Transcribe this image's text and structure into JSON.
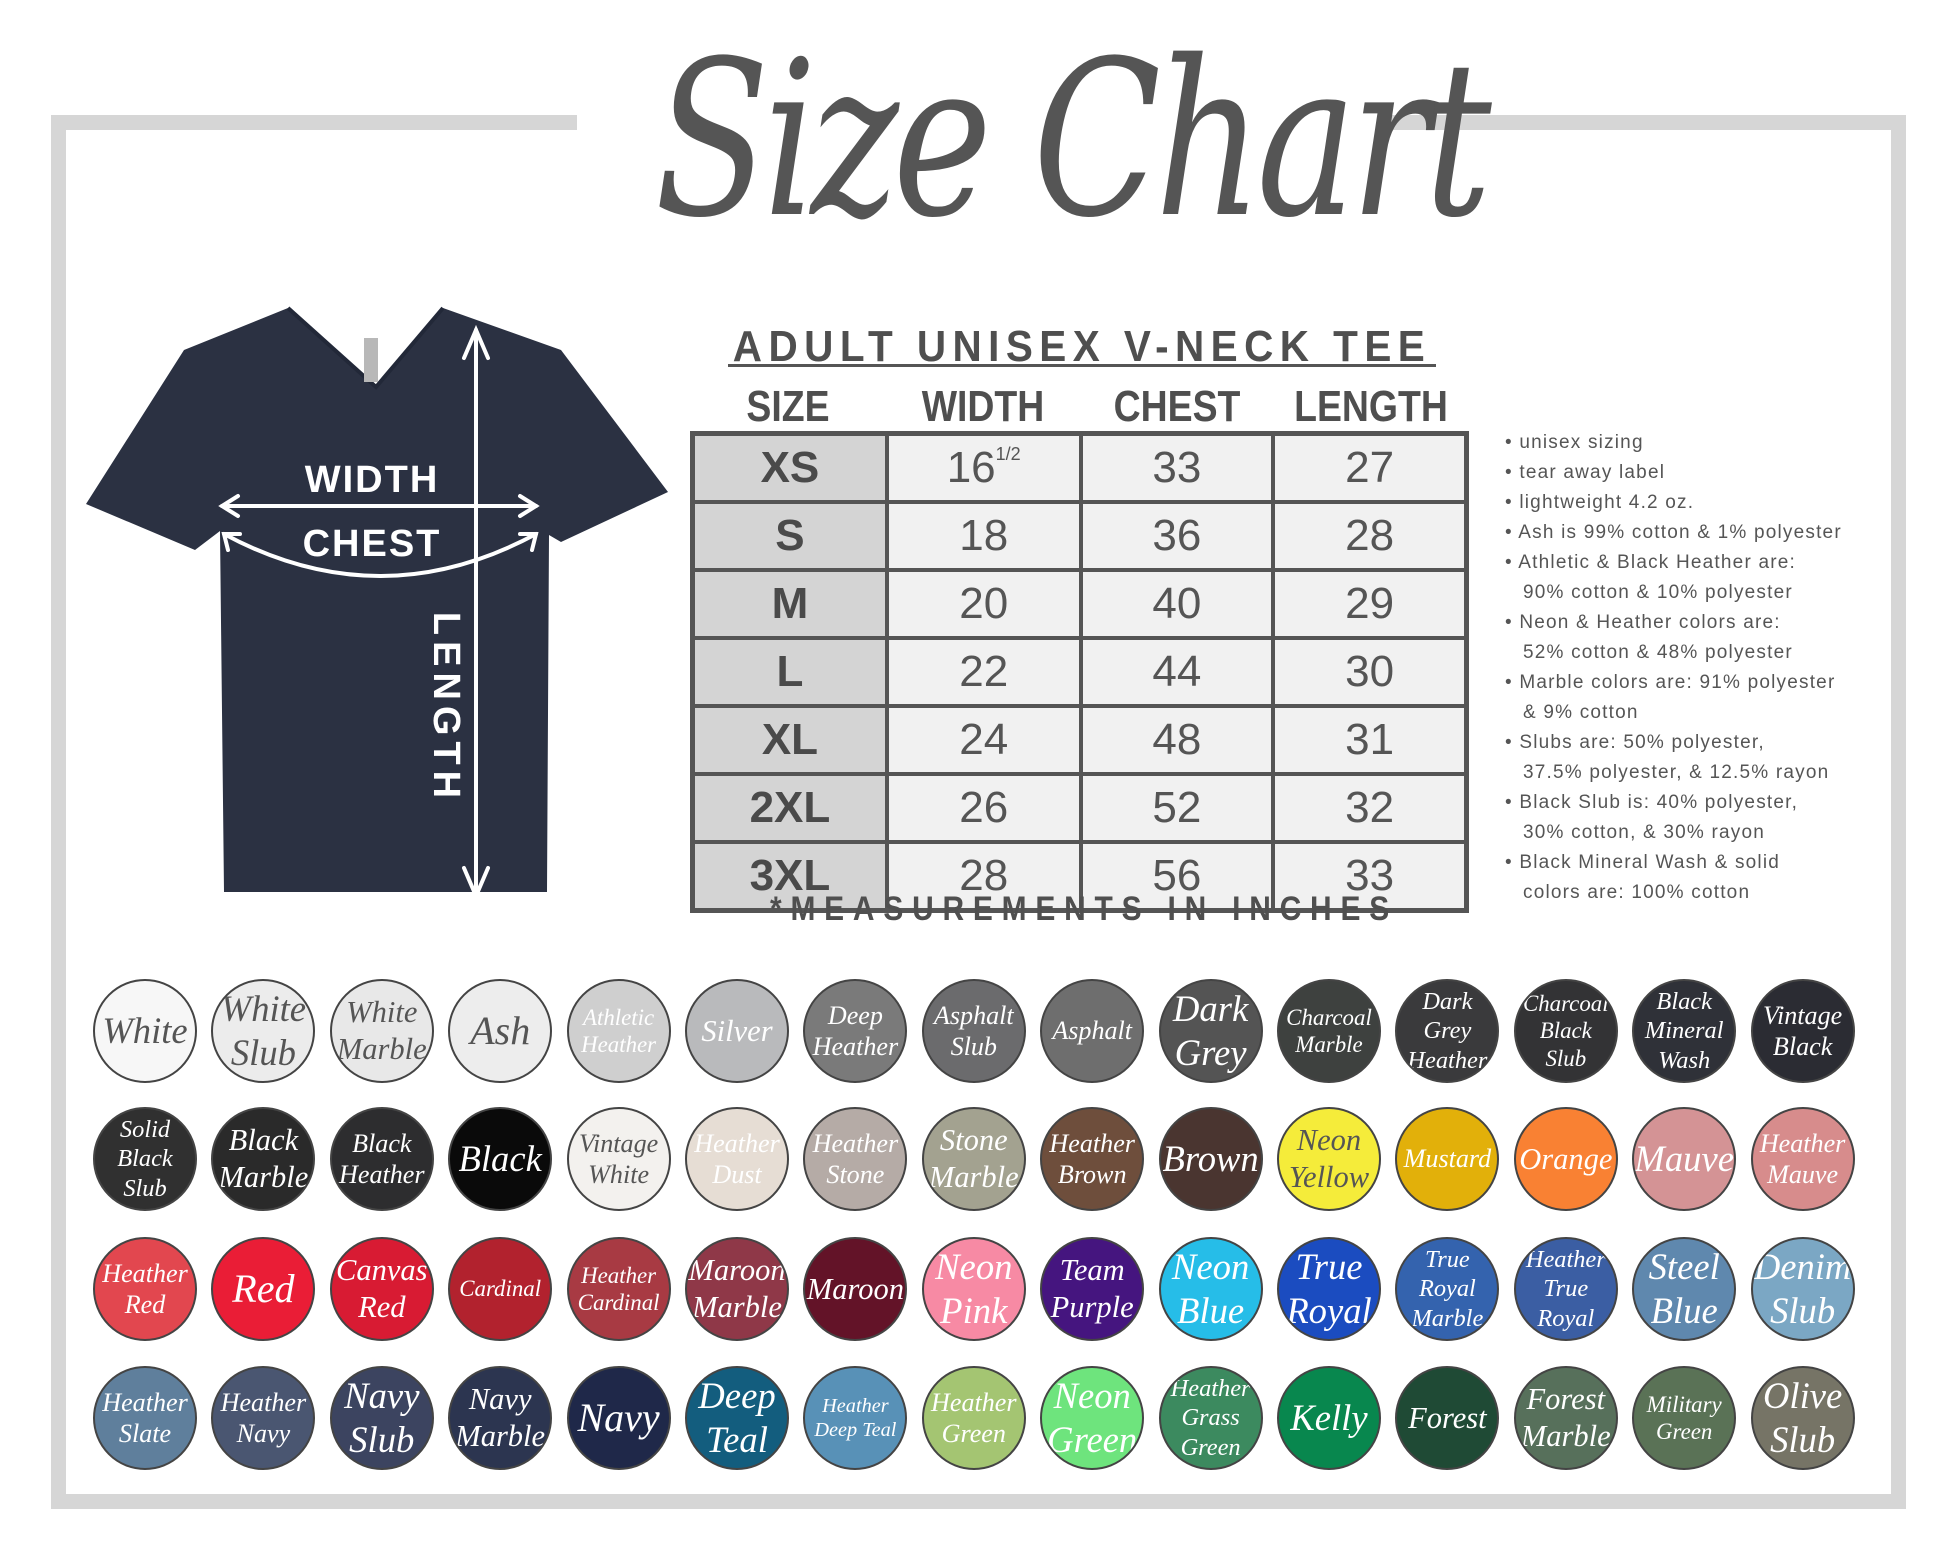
{
  "title": "Size Chart",
  "shirt": {
    "width_label": "WIDTH",
    "chest_label": "CHEST",
    "length_label": "LENGTH",
    "shirt_color": "#2b3142"
  },
  "table": {
    "heading": "ADULT UNISEX V-NECK TEE",
    "columns": [
      "SIZE",
      "WIDTH",
      "CHEST",
      "LENGTH"
    ],
    "rows": [
      {
        "size": "XS",
        "width": "16",
        "width_fraction": "1/2",
        "chest": "33",
        "length": "27"
      },
      {
        "size": "S",
        "width": "18",
        "chest": "36",
        "length": "28"
      },
      {
        "size": "M",
        "width": "20",
        "chest": "40",
        "length": "29"
      },
      {
        "size": "L",
        "width": "22",
        "chest": "44",
        "length": "30"
      },
      {
        "size": "XL",
        "width": "24",
        "chest": "48",
        "length": "31"
      },
      {
        "size": "2XL",
        "width": "26",
        "chest": "52",
        "length": "32"
      },
      {
        "size": "3XL",
        "width": "28",
        "chest": "56",
        "length": "33"
      }
    ],
    "footnote": "*MEASUREMENTS IN INCHES"
  },
  "notes": [
    [
      "unisex sizing"
    ],
    [
      "tear away label"
    ],
    [
      "lightweight 4.2 oz."
    ],
    [
      "Ash is 99% cotton & 1% polyester"
    ],
    [
      "Athletic & Black Heather are:",
      "90% cotton & 10% polyester"
    ],
    [
      "Neon & Heather colors are:",
      "52% cotton & 48% polyester"
    ],
    [
      "Marble colors are: 91% polyester",
      "& 9% cotton"
    ],
    [
      "Slubs are: 50% polyester,",
      "37.5% polyester, & 12.5% rayon"
    ],
    [
      "Black Slub is: 40% polyester,",
      "30% cotton, & 30% rayon"
    ],
    [
      "Black Mineral Wash & solid",
      "colors are: 100% cotton"
    ]
  ],
  "swatch_rows": [
    [
      {
        "lines": [
          "White"
        ],
        "color": "#f7f7f7",
        "text": "#555555"
      },
      {
        "lines": [
          "White",
          "Slub"
        ],
        "color": "#ececec",
        "text": "#555555"
      },
      {
        "lines": [
          "White",
          "Marble"
        ],
        "color": "#e8e8e8",
        "text": "#555555"
      },
      {
        "lines": [
          "Ash"
        ],
        "color": "#ededed",
        "text": "#555555"
      },
      {
        "lines": [
          "Athletic",
          "Heather"
        ],
        "color": "#cfcfcf",
        "text": "#ffffff"
      },
      {
        "lines": [
          "Silver"
        ],
        "color": "#b9babc",
        "text": "#ffffff"
      },
      {
        "lines": [
          "Deep",
          "Heather"
        ],
        "color": "#7a7a7a",
        "text": "#ffffff"
      },
      {
        "lines": [
          "Asphalt",
          "Slub"
        ],
        "color": "#6b6b6d",
        "text": "#ffffff"
      },
      {
        "lines": [
          "Asphalt"
        ],
        "color": "#6e6e6e",
        "text": "#ffffff"
      },
      {
        "lines": [
          "Dark",
          "Grey"
        ],
        "color": "#545454",
        "text": "#ffffff"
      },
      {
        "lines": [
          "Charcoal",
          "Marble"
        ],
        "color": "#3e413f",
        "text": "#ffffff"
      },
      {
        "lines": [
          "Dark",
          "Grey",
          "Heather"
        ],
        "color": "#3a3a3c",
        "text": "#ffffff"
      },
      {
        "lines": [
          "Charcoal",
          "Black",
          "Slub"
        ],
        "color": "#333335",
        "text": "#ffffff"
      },
      {
        "lines": [
          "Black",
          "Mineral",
          "Wash"
        ],
        "color": "#2f3138",
        "text": "#ffffff"
      },
      {
        "lines": [
          "Vintage",
          "Black"
        ],
        "color": "#2b2c33",
        "text": "#ffffff"
      }
    ],
    [
      {
        "lines": [
          "Solid",
          "Black",
          "Slub"
        ],
        "color": "#303030",
        "text": "#ffffff"
      },
      {
        "lines": [
          "Black",
          "Marble"
        ],
        "color": "#2a2a2a",
        "text": "#ffffff"
      },
      {
        "lines": [
          "Black",
          "Heather"
        ],
        "color": "#2d2d2f",
        "text": "#ffffff"
      },
      {
        "lines": [
          "Black"
        ],
        "color": "#0a0a0a",
        "text": "#ffffff"
      },
      {
        "lines": [
          "Vintage",
          "White"
        ],
        "color": "#f3f1ee",
        "text": "#555555"
      },
      {
        "lines": [
          "Heather",
          "Dust"
        ],
        "color": "#e6ddd4",
        "text": "#ffffff"
      },
      {
        "lines": [
          "Heather",
          "Stone"
        ],
        "color": "#b5aba6",
        "text": "#ffffff"
      },
      {
        "lines": [
          "Stone",
          "Marble"
        ],
        "color": "#a3a290",
        "text": "#ffffff"
      },
      {
        "lines": [
          "Heather",
          "Brown"
        ],
        "color": "#6e4e3c",
        "text": "#ffffff"
      },
      {
        "lines": [
          "Brown"
        ],
        "color": "#4a3530",
        "text": "#ffffff"
      },
      {
        "lines": [
          "Neon",
          "Yellow"
        ],
        "color": "#f5ec3a",
        "text": "#555555"
      },
      {
        "lines": [
          "Mustard"
        ],
        "color": "#e2b00a",
        "text": "#ffffff"
      },
      {
        "lines": [
          "Orange"
        ],
        "color": "#f98133",
        "text": "#ffffff"
      },
      {
        "lines": [
          "Mauve"
        ],
        "color": "#d49395",
        "text": "#ffffff"
      },
      {
        "lines": [
          "Heather",
          "Mauve"
        ],
        "color": "#d78c8c",
        "text": "#ffffff"
      }
    ],
    [
      {
        "lines": [
          "Heather",
          "Red"
        ],
        "color": "#e2474f",
        "text": "#ffffff"
      },
      {
        "lines": [
          "Red"
        ],
        "color": "#ea1d36",
        "text": "#ffffff"
      },
      {
        "lines": [
          "Canvas",
          "Red"
        ],
        "color": "#d81b33",
        "text": "#ffffff"
      },
      {
        "lines": [
          "Cardinal"
        ],
        "color": "#b2222e",
        "text": "#ffffff"
      },
      {
        "lines": [
          "Heather",
          "Cardinal"
        ],
        "color": "#a83a43",
        "text": "#ffffff"
      },
      {
        "lines": [
          "Maroon",
          "Marble"
        ],
        "color": "#8f3848",
        "text": "#ffffff"
      },
      {
        "lines": [
          "Maroon"
        ],
        "color": "#631328",
        "text": "#ffffff"
      },
      {
        "lines": [
          "Neon",
          "Pink"
        ],
        "color": "#f78aa4",
        "text": "#ffffff"
      },
      {
        "lines": [
          "Team",
          "Purple"
        ],
        "color": "#45157f",
        "text": "#ffffff"
      },
      {
        "lines": [
          "Neon",
          "Blue"
        ],
        "color": "#26bde8",
        "text": "#ffffff"
      },
      {
        "lines": [
          "True",
          "Royal"
        ],
        "color": "#1b4cc0",
        "text": "#ffffff"
      },
      {
        "lines": [
          "True",
          "Royal",
          "Marble"
        ],
        "color": "#3463ae",
        "text": "#ffffff"
      },
      {
        "lines": [
          "Heather",
          "True",
          "Royal"
        ],
        "color": "#3b5ea3",
        "text": "#ffffff"
      },
      {
        "lines": [
          "Steel",
          "Blue"
        ],
        "color": "#5f88ae",
        "text": "#ffffff"
      },
      {
        "lines": [
          "Denim",
          "Slub"
        ],
        "color": "#7ba7c4",
        "text": "#ffffff"
      }
    ],
    [
      {
        "lines": [
          "Heather",
          "Slate"
        ],
        "color": "#5f7f9c",
        "text": "#ffffff"
      },
      {
        "lines": [
          "Heather",
          "Navy"
        ],
        "color": "#4a5671",
        "text": "#ffffff"
      },
      {
        "lines": [
          "Navy",
          "Slub"
        ],
        "color": "#3c4460",
        "text": "#ffffff"
      },
      {
        "lines": [
          "Navy",
          "Marble"
        ],
        "color": "#2c3550",
        "text": "#ffffff"
      },
      {
        "lines": [
          "Navy"
        ],
        "color": "#1f2849",
        "text": "#ffffff"
      },
      {
        "lines": [
          "Deep",
          "Teal"
        ],
        "color": "#135d7e",
        "text": "#ffffff"
      },
      {
        "lines": [
          "Heather",
          "Deep Teal"
        ],
        "color": "#5891b7",
        "text": "#ffffff"
      },
      {
        "lines": [
          "Heather",
          "Green"
        ],
        "color": "#a4c572",
        "text": "#ffffff"
      },
      {
        "lines": [
          "Neon",
          "Green"
        ],
        "color": "#6ee47d",
        "text": "#ffffff"
      },
      {
        "lines": [
          "Heather",
          "Grass",
          "Green"
        ],
        "color": "#3c8a5f",
        "text": "#ffffff"
      },
      {
        "lines": [
          "Kelly"
        ],
        "color": "#08874e",
        "text": "#ffffff"
      },
      {
        "lines": [
          "Forest"
        ],
        "color": "#1f4a35",
        "text": "#ffffff"
      },
      {
        "lines": [
          "Forest",
          "Marble"
        ],
        "color": "#57705b",
        "text": "#ffffff"
      },
      {
        "lines": [
          "Military",
          "Green"
        ],
        "color": "#5a7256",
        "text": "#ffffff"
      },
      {
        "lines": [
          "Olive",
          "Slub"
        ],
        "color": "#767466",
        "text": "#ffffff"
      }
    ]
  ]
}
